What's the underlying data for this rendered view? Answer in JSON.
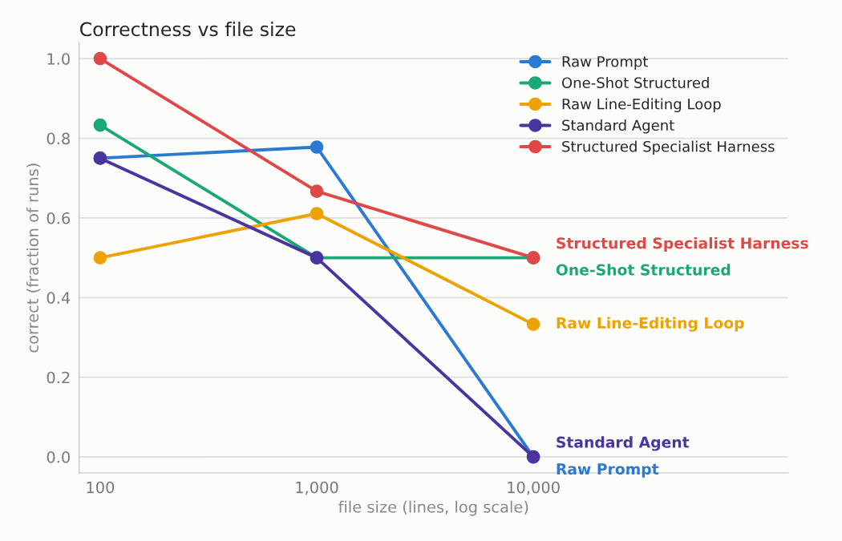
{
  "chart_data": {
    "type": "line",
    "title": "Correctness vs file size",
    "xlabel": "file size (lines, log scale)",
    "ylabel": "correct (fraction of runs)",
    "x": [
      100,
      1000,
      10000
    ],
    "log": "x",
    "xlim": [
      80,
      150000
    ],
    "xticks": [
      {
        "value": 100,
        "label": "100"
      },
      {
        "value": 1000,
        "label": "1,000"
      },
      {
        "value": 10000,
        "label": "10,000"
      }
    ],
    "ylim": [
      -0.04,
      1.04
    ],
    "yticks": [
      {
        "value": 0,
        "label": "0.0"
      },
      {
        "value": 0.2,
        "label": "0.2"
      },
      {
        "value": 0.4,
        "label": "0.4"
      },
      {
        "value": 0.6,
        "label": "0.6"
      },
      {
        "value": 0.8,
        "label": "0.8"
      },
      {
        "value": 1,
        "label": "1.0"
      }
    ],
    "grid": "y",
    "legend": "top right",
    "marker": "circle",
    "line_style": "solid",
    "series": [
      {
        "name": "Raw Prompt",
        "color": "#2a7ad5",
        "values": [
          0.75,
          0.778,
          0
        ]
      },
      {
        "name": "One-Shot Structured",
        "color": "#1aa876",
        "values": [
          0.833,
          0.5,
          0.5
        ]
      },
      {
        "name": "Raw Line-Editing Loop",
        "color": "#eda200",
        "values": [
          0.5,
          0.611,
          0.333
        ]
      },
      {
        "name": "Standard Agent",
        "color": "#4a35a0",
        "values": [
          0.75,
          0.5,
          0
        ]
      },
      {
        "name": "Structured Specialist Harness",
        "color": "#e04848",
        "values": [
          1,
          0.667,
          0.5
        ]
      }
    ]
  }
}
